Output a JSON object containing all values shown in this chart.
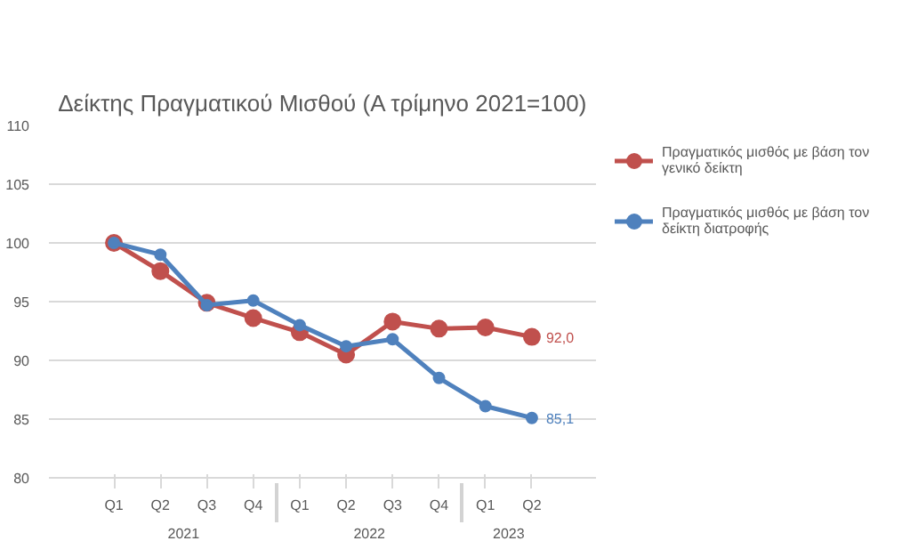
{
  "chart_data": {
    "type": "line",
    "title": "Δείκτης Πραγματικού Μισθού (Α τρίμηνο 2021=100)",
    "categories": [
      "Q1",
      "Q2",
      "Q3",
      "Q4",
      "Q1",
      "Q2",
      "Q3",
      "Q4",
      "Q1",
      "Q2"
    ],
    "annotations": [
      "2021",
      "2022",
      "2023"
    ],
    "series": [
      {
        "name": "Πραγματικός μισθός με βάση τον γενικό δείκτη",
        "color": "#c0504d",
        "values": [
          100,
          97.6,
          94.9,
          93.6,
          92.4,
          90.5,
          93.3,
          92.7,
          92.8,
          92.0
        ],
        "value_labels": [
          null,
          null,
          null,
          null,
          null,
          null,
          null,
          null,
          null,
          "92,0"
        ]
      },
      {
        "name": "Πραγματικός μισθός με βάση τον δείκτη διατροφής",
        "color": "#4f81bd",
        "values": [
          100,
          99.0,
          94.7,
          95.1,
          93.0,
          91.2,
          91.8,
          88.5,
          86.1,
          85.1
        ],
        "value_labels": [
          null,
          null,
          null,
          null,
          null,
          null,
          null,
          null,
          null,
          "85,1"
        ]
      }
    ],
    "ylim": [
      80,
      110
    ],
    "yticks": [
      80,
      85,
      90,
      95,
      100,
      105,
      110
    ],
    "grid": "y",
    "legend": "right",
    "marker": "circle",
    "line_style": "solid"
  }
}
